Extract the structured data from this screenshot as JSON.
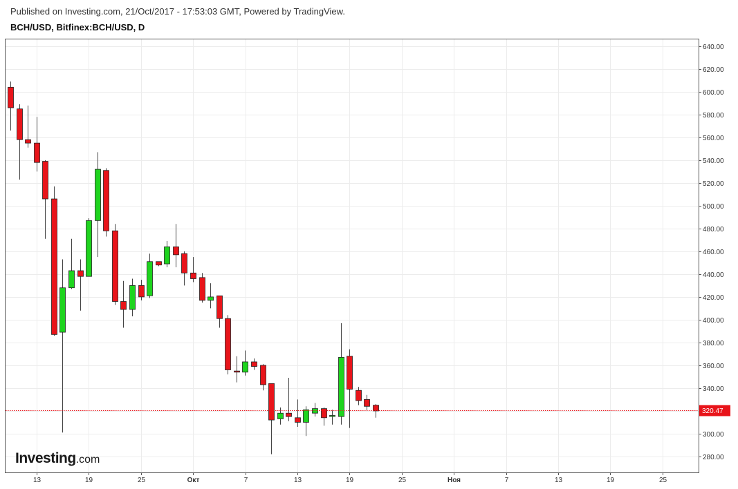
{
  "header": {
    "published": "Published on Investing.com, 21/Oct/2017 - 17:53:03 GMT, Powered by TradingView.",
    "symbol": "BCH/USD, Bitfinex:BCH/USD, D"
  },
  "logo": {
    "main": "Investing",
    "suffix": ".com"
  },
  "colors": {
    "up": "#1ed41e",
    "down": "#e8141a",
    "price_line": "#e8141a",
    "grid": "#ececec"
  },
  "chart_data": {
    "type": "candlestick",
    "ylim": [
      266,
      646
    ],
    "y_ticks": [
      "640.00",
      "620.00",
      "600.00",
      "580.00",
      "560.00",
      "540.00",
      "520.00",
      "500.00",
      "480.00",
      "460.00",
      "440.00",
      "420.00",
      "400.00",
      "380.00",
      "360.00",
      "340.00",
      "320.00",
      "300.00",
      "280.00"
    ],
    "x_ticks": [
      {
        "label": "13",
        "bold": false
      },
      {
        "label": "19",
        "bold": false
      },
      {
        "label": "25",
        "bold": false
      },
      {
        "label": "Окт",
        "bold": true
      },
      {
        "label": "7",
        "bold": false
      },
      {
        "label": "13",
        "bold": false
      },
      {
        "label": "19",
        "bold": false
      },
      {
        "label": "25",
        "bold": false
      },
      {
        "label": "Ноя",
        "bold": true
      },
      {
        "label": "7",
        "bold": false
      },
      {
        "label": "13",
        "bold": false
      },
      {
        "label": "19",
        "bold": false
      },
      {
        "label": "25",
        "bold": false
      }
    ],
    "last_price": "320.47",
    "last_price_value": 320.47,
    "candles": [
      {
        "o": 604,
        "h": 609,
        "l": 566,
        "c": 586
      },
      {
        "o": 585,
        "h": 589,
        "l": 523,
        "c": 558
      },
      {
        "o": 558,
        "h": 588,
        "l": 551,
        "c": 555
      },
      {
        "o": 555,
        "h": 578,
        "l": 530,
        "c": 538
      },
      {
        "o": 539,
        "h": 540,
        "l": 471,
        "c": 506
      },
      {
        "o": 506,
        "h": 517,
        "l": 386,
        "c": 387
      },
      {
        "o": 389,
        "h": 453,
        "l": 301,
        "c": 428
      },
      {
        "o": 428,
        "h": 471,
        "l": 427,
        "c": 443
      },
      {
        "o": 443,
        "h": 453,
        "l": 408,
        "c": 438
      },
      {
        "o": 438,
        "h": 489,
        "l": 438,
        "c": 487
      },
      {
        "o": 487,
        "h": 547,
        "l": 455,
        "c": 532
      },
      {
        "o": 531,
        "h": 533,
        "l": 473,
        "c": 478
      },
      {
        "o": 478,
        "h": 484,
        "l": 413,
        "c": 416
      },
      {
        "o": 416,
        "h": 434,
        "l": 393,
        "c": 409
      },
      {
        "o": 409,
        "h": 436,
        "l": 403,
        "c": 430
      },
      {
        "o": 430,
        "h": 435,
        "l": 417,
        "c": 420
      },
      {
        "o": 421,
        "h": 458,
        "l": 419,
        "c": 451
      },
      {
        "o": 451,
        "h": 451,
        "l": 447,
        "c": 448
      },
      {
        "o": 449,
        "h": 469,
        "l": 446,
        "c": 464
      },
      {
        "o": 464,
        "h": 484,
        "l": 446,
        "c": 457
      },
      {
        "o": 458,
        "h": 460,
        "l": 430,
        "c": 441
      },
      {
        "o": 441,
        "h": 455,
        "l": 433,
        "c": 436
      },
      {
        "o": 437,
        "h": 441,
        "l": 415,
        "c": 417
      },
      {
        "o": 417,
        "h": 432,
        "l": 410,
        "c": 420
      },
      {
        "o": 421,
        "h": 421,
        "l": 393,
        "c": 401
      },
      {
        "o": 401,
        "h": 404,
        "l": 352,
        "c": 356
      },
      {
        "o": 355,
        "h": 368,
        "l": 345,
        "c": 354
      },
      {
        "o": 354,
        "h": 373,
        "l": 351,
        "c": 363
      },
      {
        "o": 363,
        "h": 366,
        "l": 356,
        "c": 359
      },
      {
        "o": 360,
        "h": 361,
        "l": 338,
        "c": 343
      },
      {
        "o": 344,
        "h": 344,
        "l": 282,
        "c": 312
      },
      {
        "o": 313,
        "h": 323,
        "l": 308,
        "c": 318
      },
      {
        "o": 318,
        "h": 349,
        "l": 311,
        "c": 315
      },
      {
        "o": 314,
        "h": 330,
        "l": 306,
        "c": 310
      },
      {
        "o": 310,
        "h": 324,
        "l": 298,
        "c": 321
      },
      {
        "o": 318,
        "h": 327,
        "l": 315,
        "c": 322
      },
      {
        "o": 322,
        "h": 323,
        "l": 307,
        "c": 314
      },
      {
        "o": 316,
        "h": 321,
        "l": 308,
        "c": 316
      },
      {
        "o": 315,
        "h": 397,
        "l": 308,
        "c": 367
      },
      {
        "o": 368,
        "h": 374,
        "l": 305,
        "c": 339
      },
      {
        "o": 338,
        "h": 341,
        "l": 325,
        "c": 329
      },
      {
        "o": 330,
        "h": 334,
        "l": 320,
        "c": 324
      },
      {
        "o": 325,
        "h": 326,
        "l": 314,
        "c": 320
      }
    ]
  }
}
